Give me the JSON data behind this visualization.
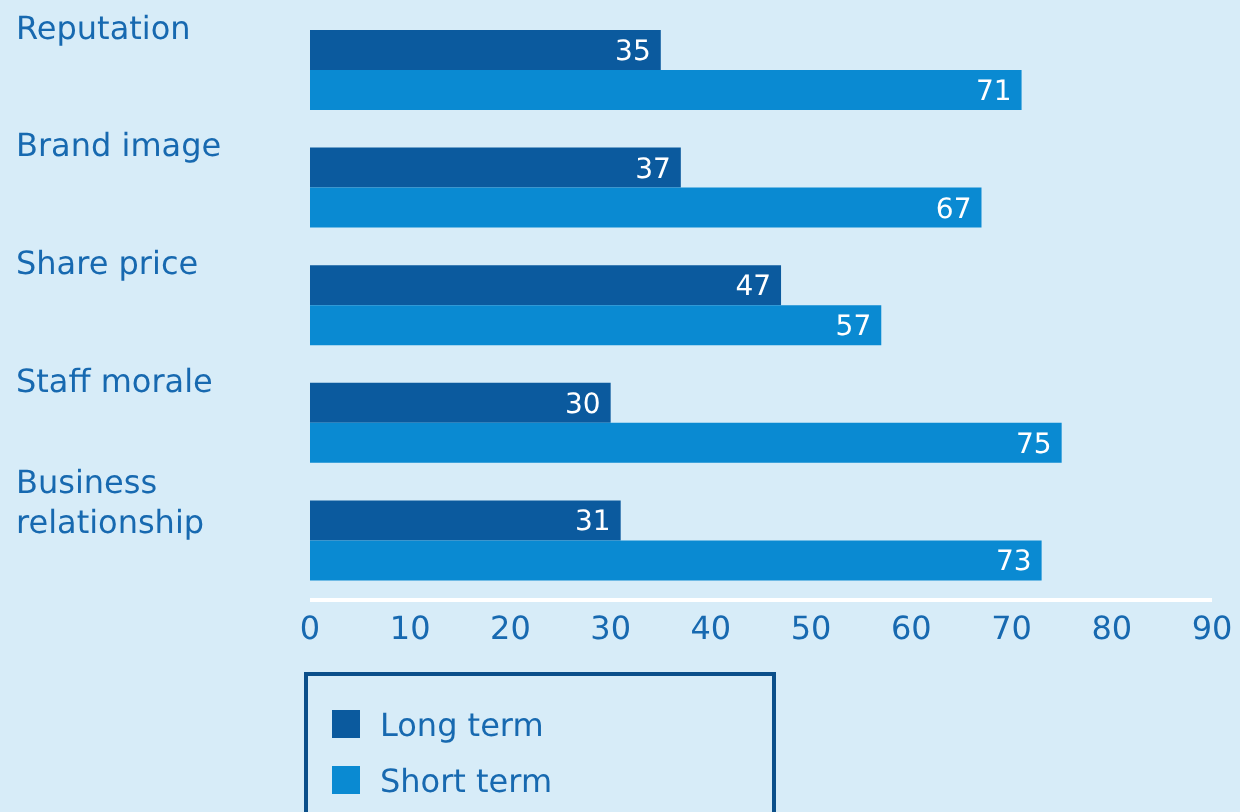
{
  "chart_data": {
    "type": "bar",
    "orientation": "horizontal",
    "categories": [
      "Reputation",
      "Brand image",
      "Share price",
      "Staff morale",
      "Business relationship"
    ],
    "series": [
      {
        "name": "Long term",
        "color": "#0b5a9e",
        "values": [
          35,
          37,
          47,
          30,
          31
        ]
      },
      {
        "name": "Short term",
        "color": "#0a8ad2",
        "values": [
          71,
          67,
          57,
          75,
          73
        ]
      }
    ],
    "xlim": [
      0,
      90
    ],
    "xticks": [
      0,
      10,
      20,
      30,
      40,
      50,
      60,
      70,
      80,
      90
    ],
    "data_labels": true,
    "grid": false,
    "legend": "bottom"
  }
}
